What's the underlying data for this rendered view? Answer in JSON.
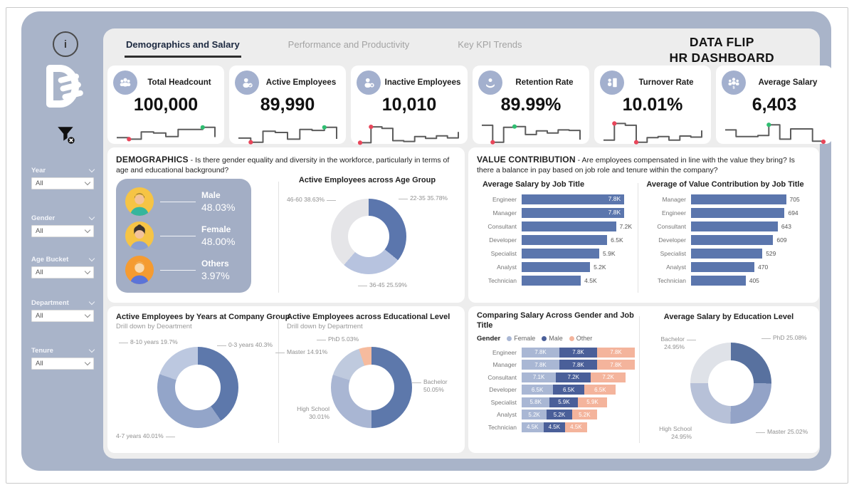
{
  "window": {
    "title_line1": "DATA FLIP",
    "title_line2": "HR DASHBOARD"
  },
  "tabs": [
    {
      "label": "Demographics and Salary",
      "active": true
    },
    {
      "label": "Performance and Productivity",
      "active": false
    },
    {
      "label": "Key KPI Trends",
      "active": false
    }
  ],
  "sidebar": {
    "filters": [
      {
        "label": "Year",
        "value": "All"
      },
      {
        "label": "Gender",
        "value": "All"
      },
      {
        "label": "Age Bucket",
        "value": "All"
      },
      {
        "label": "Department",
        "value": "All"
      },
      {
        "label": "Tenure",
        "value": "All"
      }
    ]
  },
  "colors": {
    "container": "#a9b4c9",
    "panel": "#ededed",
    "bar_blue": "#5b76ad",
    "female": "#a9b7d4",
    "male": "#4a5f99",
    "other": "#f4b49c",
    "spark_red": "#e8465a",
    "spark_green": "#2fbe71"
  },
  "kpis": [
    {
      "title": "Total Headcount",
      "value": "100,000",
      "icon": "users-icon",
      "spark": [
        30,
        24,
        52,
        48,
        34,
        62,
        62,
        70,
        32
      ],
      "dots": [
        {
          "i": 1,
          "c": "#e8465a"
        },
        {
          "i": 7,
          "c": "#2fbe71"
        }
      ]
    },
    {
      "title": "Active Employees",
      "value": "89,990",
      "icon": "user-check-icon",
      "spark": [
        28,
        12,
        55,
        50,
        24,
        62,
        58,
        70,
        25
      ],
      "dots": [
        {
          "i": 1,
          "c": "#e8465a"
        },
        {
          "i": 7,
          "c": "#2fbe71"
        }
      ]
    },
    {
      "title": "Inactive Employees",
      "value": "10,010",
      "icon": "user-x-icon",
      "spark": [
        10,
        72,
        66,
        18,
        15,
        34,
        27,
        37,
        29,
        52
      ],
      "dots": [
        {
          "i": 0,
          "c": "#e8465a"
        },
        {
          "i": 1,
          "c": "#e8465a"
        }
      ]
    },
    {
      "title": "Retention Rate",
      "value": "89.99%",
      "icon": "retention-icon",
      "spark": [
        78,
        12,
        70,
        73,
        42,
        56,
        48,
        60,
        58,
        22
      ],
      "dots": [
        {
          "i": 1,
          "c": "#e8465a"
        },
        {
          "i": 3,
          "c": "#2fbe71"
        }
      ]
    },
    {
      "title": "Turnover Rate",
      "value": "10.01%",
      "icon": "turnover-icon",
      "spark": [
        20,
        85,
        78,
        12,
        30,
        34,
        20,
        36,
        32,
        58
      ],
      "dots": [
        {
          "i": 1,
          "c": "#e8465a"
        },
        {
          "i": 3,
          "c": "#e8465a"
        }
      ]
    },
    {
      "title": "Average Salary",
      "value": "6,403",
      "icon": "salary-icon",
      "spark": [
        60,
        34,
        34,
        38,
        80,
        24,
        64,
        64,
        16,
        14
      ],
      "dots": [
        {
          "i": 4,
          "c": "#2fbe71"
        },
        {
          "i": 9,
          "c": "#e8465a"
        }
      ]
    }
  ],
  "sections": {
    "demographics": {
      "heading": "DEMOGRAPHICS",
      "question": " - Is there gender equality and diversity in the workforce, particularly in terms of age and educational background?"
    },
    "value_contribution": {
      "heading": "VALUE CONTRIBUTION",
      "question": " - Are employees compensated in line with the value they bring? Is there a balance in pay based on job role and tenure within the company?"
    }
  },
  "gender_stats": [
    {
      "label": "Male",
      "value": "48.03%"
    },
    {
      "label": "Female",
      "value": "48.00%"
    },
    {
      "label": "Others",
      "value": "3.97%"
    }
  ],
  "chart_data": [
    {
      "type": "pie",
      "donut": true,
      "title": "Active Employees across Age Group",
      "segments": [
        {
          "label": "22-35",
          "value": 35.78,
          "color": "#5b76ad"
        },
        {
          "label": "36-45",
          "value": 25.59,
          "color": "#b7c3df"
        },
        {
          "label": "46-60",
          "value": 38.63,
          "color": "#e5e5e8"
        }
      ],
      "callouts": [
        "46-60 38.63%",
        "22-35 35.78%",
        "36-45 25.59%"
      ]
    },
    {
      "type": "bar",
      "title": "Average Salary by Job Title",
      "color": "#5b76ad",
      "categories": [
        "Engineer",
        "Manager",
        "Consultant",
        "Developer",
        "Specialist",
        "Analyst",
        "Technician"
      ],
      "values": [
        7.8,
        7.8,
        7.2,
        6.5,
        5.9,
        5.2,
        4.5
      ],
      "labels": [
        "7.8K",
        "7.8K",
        "7.2K",
        "6.5K",
        "5.9K",
        "5.2K",
        "4.5K"
      ],
      "fit": 0.93,
      "inside_threshold": 0.95
    },
    {
      "type": "bar",
      "title": "Average of Value Contribution by Job Title",
      "color": "#5b76ad",
      "categories": [
        "Manager",
        "Engineer",
        "Consultant",
        "Developer",
        "Specialist",
        "Analyst",
        "Technician"
      ],
      "values": [
        705,
        694,
        643,
        609,
        529,
        470,
        405
      ],
      "labels": [
        "705",
        "694",
        "643",
        "609",
        "529",
        "470",
        "405"
      ],
      "fit": 0.84,
      "inside_threshold": 2
    },
    {
      "type": "pie",
      "donut": true,
      "title": "Active Employees by Years at Company Group",
      "subtitle": "Drill down by Deoartment",
      "segments": [
        {
          "label": "0-3 years",
          "value": 40.3,
          "color": "#5d78ab"
        },
        {
          "label": "4-7 years",
          "value": 40.01,
          "color": "#93a5c9"
        },
        {
          "label": "8-10 years",
          "value": 19.7,
          "color": "#bcc8e0"
        }
      ],
      "callouts": [
        "8-10 years 19.7%",
        "0-3 years 40.3%",
        "4-7 years 40.01%"
      ]
    },
    {
      "type": "pie",
      "donut": true,
      "title": "Active Employees across Educational Level",
      "subtitle": "Drill down by Department",
      "segments": [
        {
          "label": "Bachelor",
          "value": 50.05,
          "color": "#5d78ab"
        },
        {
          "label": "High School",
          "value": 30.01,
          "color": "#a9b6d3"
        },
        {
          "label": "Master",
          "value": 14.91,
          "color": "#bfcade"
        },
        {
          "label": "PhD",
          "value": 5.03,
          "color": "#f6bb9e"
        }
      ],
      "callouts": [
        "PhD 5.03%",
        "Master 14.91%",
        "High School\n30.01%",
        "Bachelor\n50.05%"
      ]
    },
    {
      "type": "bar",
      "stacked": true,
      "title": "Comparing Salary Across Gender and Job Title",
      "legend_title": "Gender",
      "categories": [
        "Engineer",
        "Manager",
        "Consultant",
        "Developer",
        "Specialist",
        "Analyst",
        "Technician"
      ],
      "series": [
        {
          "name": "Female",
          "color": "#a9b7d4",
          "values": [
            7.8,
            7.8,
            7.1,
            6.5,
            5.8,
            5.2,
            4.5
          ],
          "labels": [
            "7.8K",
            "7.8K",
            "7.1K",
            "6.5K",
            "5.8K",
            "5.2K",
            "4.5K"
          ]
        },
        {
          "name": "Male",
          "color": "#4a5f99",
          "values": [
            7.8,
            7.8,
            7.2,
            6.5,
            5.9,
            5.2,
            4.5
          ],
          "labels": [
            "7.8K",
            "7.8K",
            "7.2K",
            "6.5K",
            "5.9K",
            "5.2K",
            "4.5K"
          ]
        },
        {
          "name": "Other",
          "color": "#f4b49c",
          "values": [
            7.8,
            7.8,
            7.2,
            6.5,
            5.9,
            5.2,
            4.5
          ],
          "labels": [
            "7.8K",
            "7.8K",
            "7.2K",
            "6.5K",
            "5.9K",
            "5.2K",
            "4.5K"
          ]
        }
      ]
    },
    {
      "type": "pie",
      "donut": true,
      "title": "Average Salary by Education Level",
      "segments": [
        {
          "label": "PhD",
          "value": 25.08,
          "color": "#58719f"
        },
        {
          "label": "Master",
          "value": 25.02,
          "color": "#93a3c7"
        },
        {
          "label": "High School",
          "value": 24.95,
          "color": "#b7c1d8"
        },
        {
          "label": "Bachelor",
          "value": 24.95,
          "color": "#dfe2e8"
        }
      ],
      "callouts": [
        "PhD 25.08%",
        "Bachelor\n24.95%",
        "High School\n24.95%",
        "Master 25.02%"
      ]
    }
  ]
}
